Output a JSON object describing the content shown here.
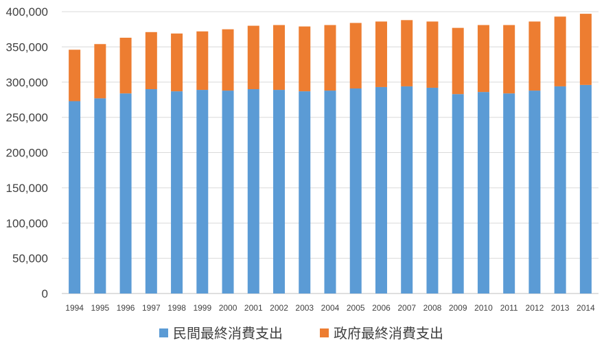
{
  "chart_data": {
    "type": "bar",
    "stacked": true,
    "categories": [
      "1994",
      "1995",
      "1996",
      "1997",
      "1998",
      "1999",
      "2000",
      "2001",
      "2002",
      "2003",
      "2004",
      "2005",
      "2006",
      "2007",
      "2008",
      "2009",
      "2010",
      "2011",
      "2012",
      "2013",
      "2014"
    ],
    "series": [
      {
        "name": "民間最終消費支出",
        "color": "#5b9bd5",
        "values": [
          273000,
          277000,
          284000,
          290000,
          287000,
          289000,
          288000,
          290000,
          289000,
          287000,
          288000,
          291000,
          293000,
          294000,
          292000,
          283000,
          286000,
          284000,
          288000,
          294000,
          296000
        ]
      },
      {
        "name": "政府最終消費支出",
        "color": "#ed7d31",
        "values": [
          73000,
          77000,
          79000,
          81000,
          82000,
          83000,
          87000,
          90000,
          92000,
          92000,
          93000,
          93000,
          93000,
          94000,
          94000,
          94000,
          95000,
          97000,
          98000,
          99000,
          101000
        ]
      }
    ],
    "y_ticks": [
      "0",
      "50,000",
      "100,000",
      "150,000",
      "200,000",
      "250,000",
      "300,000",
      "350,000",
      "400,000"
    ],
    "ylim": [
      0,
      400000
    ],
    "grid": true,
    "legend_position": "bottom",
    "title": "",
    "xlabel": "",
    "ylabel": ""
  }
}
